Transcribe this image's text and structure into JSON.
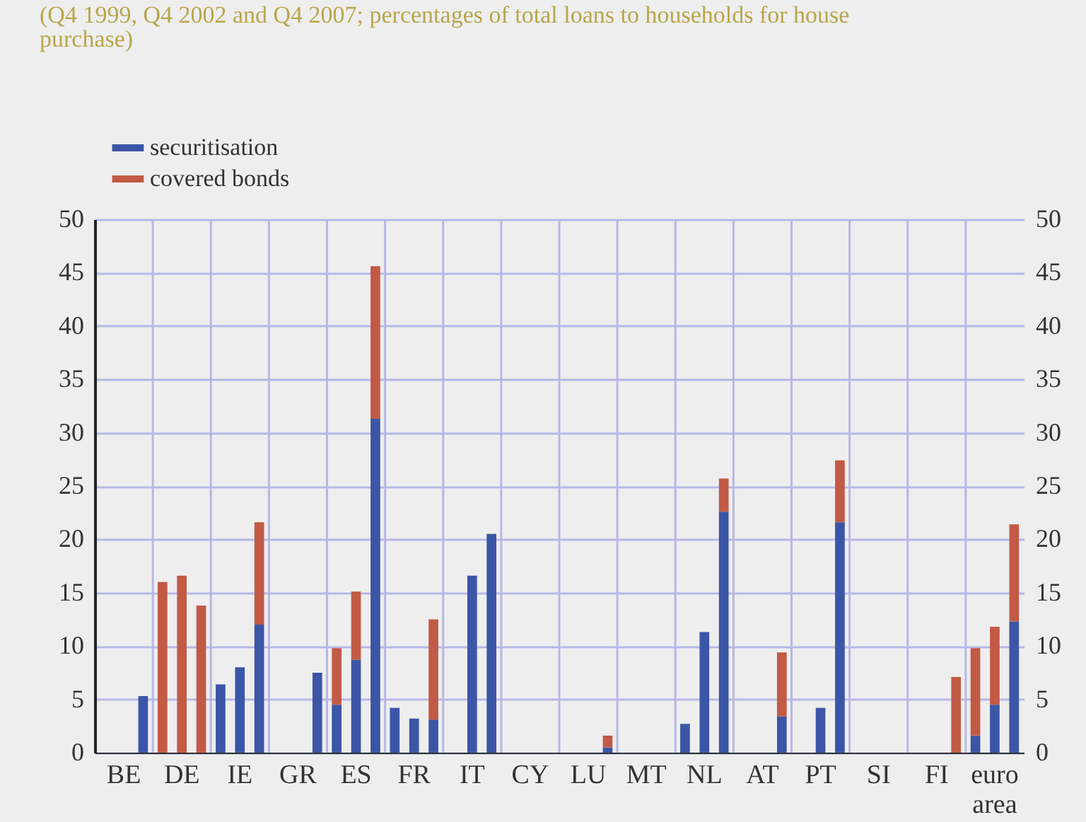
{
  "chart_data": {
    "type": "bar",
    "stacked": true,
    "title": "(Q4 1999, Q4 2002 and Q4 2007; percentages of total loans to households for house purchase)",
    "categories": [
      null,
      "BE",
      null,
      null,
      "DE",
      null,
      null,
      "IE",
      null,
      null,
      "GR",
      null,
      null,
      "ES",
      null,
      null,
      "FR",
      null,
      null,
      "IT",
      null,
      null,
      "CY",
      null,
      null,
      "LU",
      null,
      null,
      "MT",
      null,
      null,
      "NL",
      null,
      null,
      "AT",
      null,
      null,
      "PT",
      null,
      null,
      "SI",
      null,
      null,
      "FI",
      null,
      null,
      "euro area",
      null
    ],
    "series": [
      {
        "name": "securitisation",
        "color": "#3b56a6",
        "values": [
          null,
          null,
          5.3,
          null,
          null,
          null,
          6.4,
          8,
          12,
          null,
          null,
          7.5,
          4.5,
          8.7,
          31.3,
          4.2,
          3.2,
          3.1,
          null,
          16.6,
          20.5,
          null,
          null,
          null,
          null,
          null,
          0.5,
          null,
          null,
          null,
          2.7,
          11.3,
          22.6,
          null,
          null,
          3.4,
          null,
          4.2,
          21.6,
          null,
          null,
          null,
          null,
          null,
          null,
          1.6,
          4.5,
          12.3
        ]
      },
      {
        "name": "covered bonds",
        "color": "#c25a45",
        "values": [
          null,
          null,
          null,
          16,
          16.6,
          13.8,
          null,
          null,
          9.6,
          null,
          null,
          null,
          5.3,
          6.4,
          14.3,
          null,
          null,
          9.4,
          null,
          null,
          null,
          null,
          null,
          null,
          null,
          null,
          1.1,
          null,
          null,
          null,
          null,
          null,
          3.1,
          null,
          null,
          6,
          null,
          null,
          5.8,
          null,
          null,
          null,
          null,
          null,
          7.1,
          8.2,
          7.3,
          9.1
        ]
      }
    ],
    "ylim": [
      0,
      50
    ],
    "yticks": [
      0,
      5,
      10,
      15,
      20,
      25,
      30,
      35,
      40,
      45,
      50
    ],
    "y2lim": [
      0,
      50
    ],
    "y2ticks": [
      0,
      5,
      10,
      15,
      20,
      25,
      30,
      35,
      40,
      45,
      50
    ],
    "grid": true,
    "legend": "top left"
  }
}
